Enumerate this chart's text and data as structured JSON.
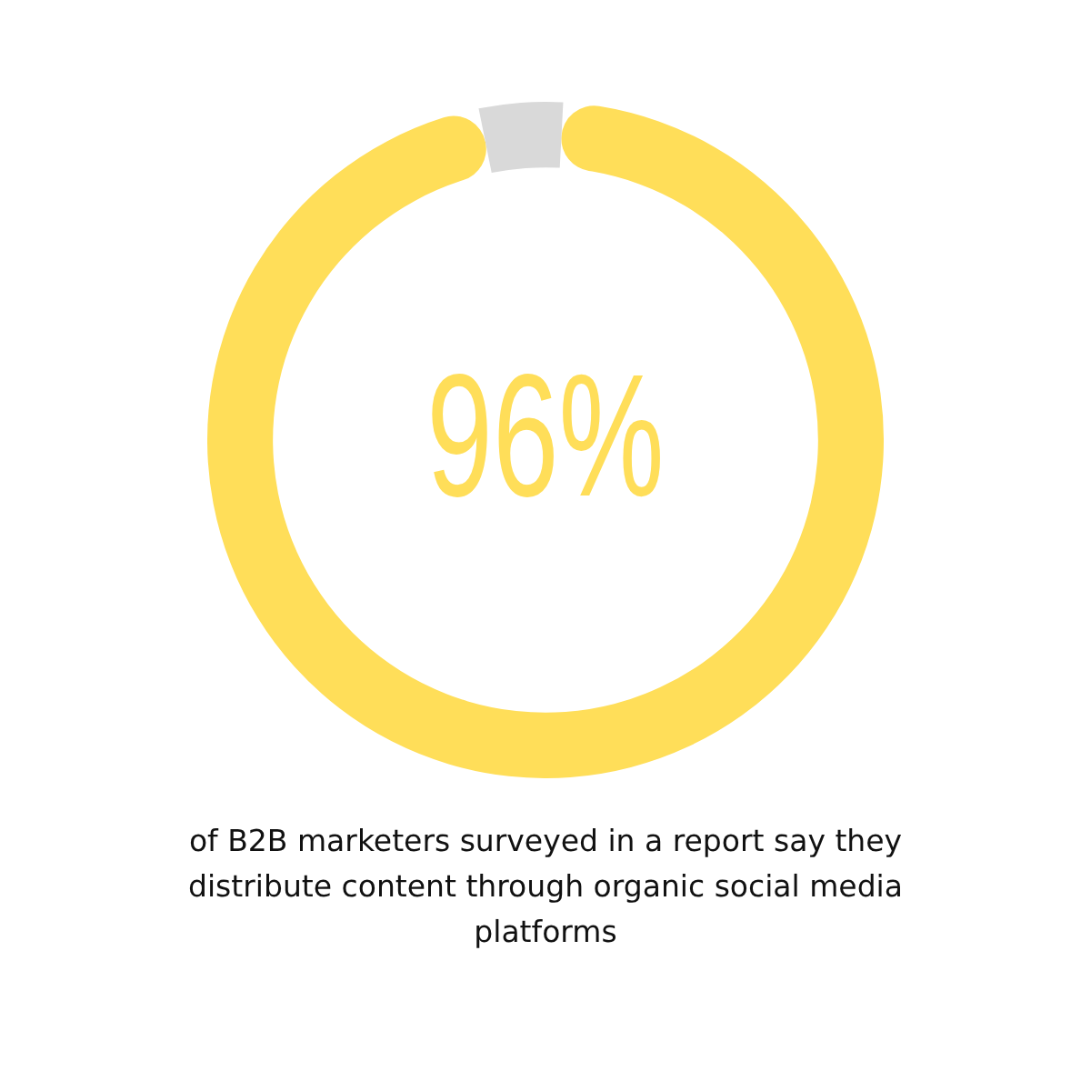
{
  "chart_data": {
    "type": "donut",
    "categories": [
      null,
      null
    ],
    "values": [
      96,
      4
    ],
    "colors": [
      "#ffde59",
      "#d9d9d9"
    ],
    "value_labels": [
      "96%",
      null
    ],
    "legend": false,
    "annotations": [
      "of B2B marketers surveyed in a report say they distribute content through organic social media platforms"
    ]
  }
}
